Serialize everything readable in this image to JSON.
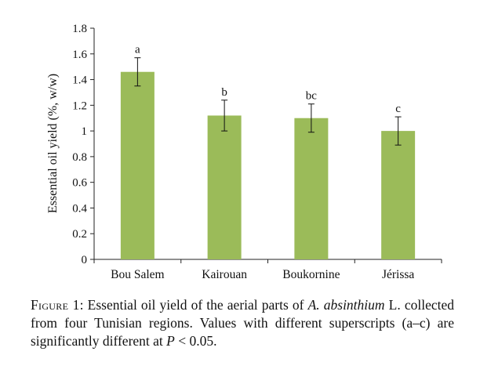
{
  "chart_data": {
    "type": "bar",
    "categories": [
      "Bou Salem",
      "Kairouan",
      "Boukornine",
      "Jérissa"
    ],
    "values": [
      1.46,
      1.12,
      1.1,
      1.0
    ],
    "errors": [
      0.11,
      0.12,
      0.11,
      0.11
    ],
    "significance_labels": [
      "a",
      "b",
      "bc",
      "c"
    ],
    "ylabel": "Essential oil yield (%, w/w)",
    "xlabel": "",
    "ylim": [
      0,
      1.8
    ],
    "yticks": [
      "0",
      "0.2",
      "0.4",
      "0.6",
      "0.8",
      "1",
      "1.2",
      "1.4",
      "1.6",
      "1.8"
    ],
    "bar_color": "#9bbb59",
    "grid": false,
    "legend": "none"
  },
  "caption": {
    "label": "Figure 1",
    "text_1": ": Essential oil yield of the aerial parts of ",
    "species": "A. absinthium",
    "text_2": " L. collected from four Tunisian regions. Values with different superscripts (a–c) are significantly different at ",
    "p_symbol": "P",
    "text_3": " < 0.05."
  }
}
